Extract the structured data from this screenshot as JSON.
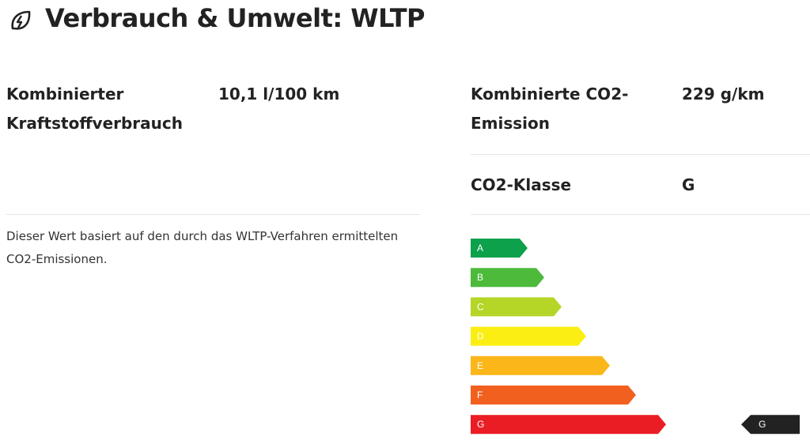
{
  "header": {
    "title": "Verbrauch & Umwelt: WLTP"
  },
  "left": {
    "rows": [
      {
        "label": "Kombinierter Kraftstoffverbrauch",
        "value": "10,1 l/100 km"
      }
    ],
    "note": "Dieser Wert basiert auf den durch das WLTP-Verfahren ermittelten CO2-Emissionen."
  },
  "right": {
    "rows": [
      {
        "label": "Kombinierte CO2-Emission",
        "value": "229 g/km"
      },
      {
        "label": "CO2-Klasse",
        "value": "G"
      }
    ]
  },
  "energy_label": {
    "classes": [
      {
        "label": "A",
        "color": "#0ea14b"
      },
      {
        "label": "B",
        "color": "#4dba3c"
      },
      {
        "label": "C",
        "color": "#b5d626"
      },
      {
        "label": "D",
        "color": "#fbee12"
      },
      {
        "label": "E",
        "color": "#fbb61a"
      },
      {
        "label": "F",
        "color": "#f2601f"
      },
      {
        "label": "G",
        "color": "#ea1d25"
      }
    ],
    "indicator": "G",
    "indicator_color": "#222222"
  }
}
